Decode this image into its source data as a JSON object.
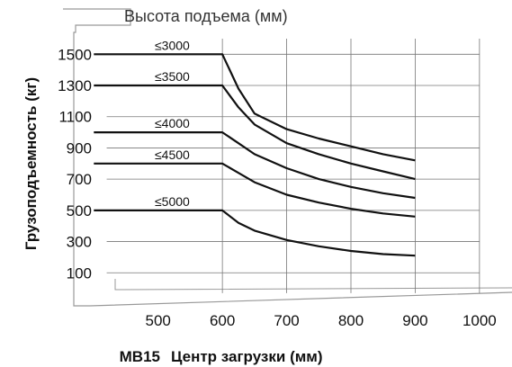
{
  "chart_data": {
    "type": "line",
    "title": "Высота подъема (мм)",
    "model": "MB15",
    "xlabel": "Центр загрузки (мм)",
    "ylabel": "Грузоподъемность (кг)",
    "xlim": [
      380,
      1045
    ],
    "ylim": [
      -100,
      1640
    ],
    "x_ticks": [
      500,
      600,
      700,
      800,
      900,
      1000
    ],
    "y_ticks": [
      100,
      300,
      500,
      700,
      900,
      1100,
      1300,
      1500
    ],
    "grid": true,
    "series": [
      {
        "name": "≤3000",
        "x": [
          400,
          600,
          625,
          650,
          700,
          750,
          800,
          850,
          900
        ],
        "y": [
          1500,
          1500,
          1280,
          1120,
          1020,
          960,
          910,
          860,
          820
        ]
      },
      {
        "name": "≤3500",
        "x": [
          400,
          600,
          625,
          650,
          700,
          750,
          800,
          850,
          900
        ],
        "y": [
          1300,
          1300,
          1160,
          1050,
          930,
          860,
          800,
          750,
          700
        ]
      },
      {
        "name": "≤4000",
        "x": [
          400,
          600,
          625,
          650,
          700,
          750,
          800,
          850,
          900
        ],
        "y": [
          1000,
          1000,
          930,
          860,
          770,
          700,
          650,
          610,
          580
        ]
      },
      {
        "name": "≤4500",
        "x": [
          400,
          600,
          625,
          650,
          700,
          750,
          800,
          850,
          900
        ],
        "y": [
          800,
          800,
          740,
          680,
          600,
          550,
          510,
          480,
          460
        ]
      },
      {
        "name": "≤5000",
        "x": [
          400,
          600,
          625,
          650,
          700,
          750,
          800,
          850,
          900
        ],
        "y": [
          500,
          500,
          420,
          370,
          310,
          270,
          240,
          220,
          210
        ]
      }
    ]
  }
}
